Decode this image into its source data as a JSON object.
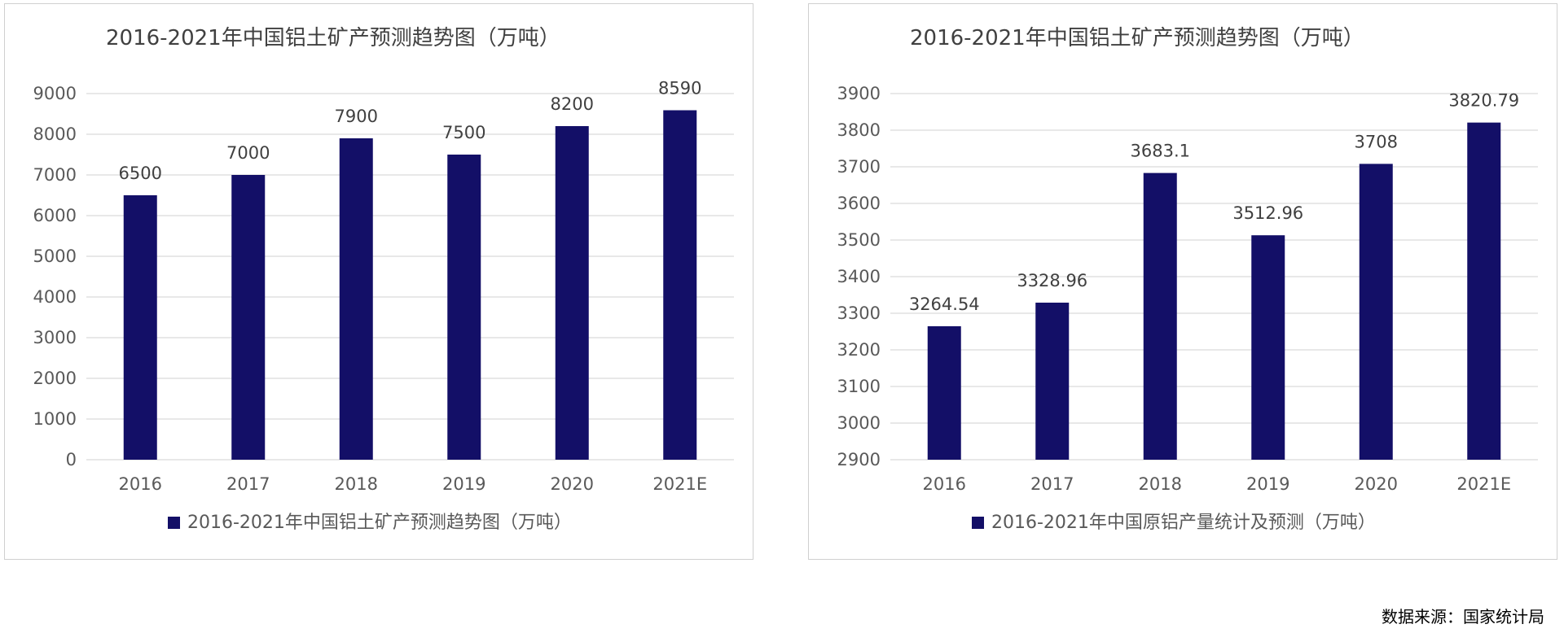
{
  "source_note": "数据来源：国家统计局",
  "colors": {
    "bar": "#130f67",
    "grid": "#d9d9d9"
  },
  "chart_data": [
    {
      "type": "bar",
      "title": "2016-2021年中国铝土矿产预测趋势图（万吨）",
      "categories": [
        "2016",
        "2017",
        "2018",
        "2019",
        "2020",
        "2021E"
      ],
      "series": [
        {
          "name": "2016-2021年中国铝土矿产预测趋势图（万吨）",
          "values": [
            6500,
            7000,
            7900,
            7500,
            8200,
            8590
          ]
        }
      ],
      "data_labels": [
        "6500",
        "7000",
        "7900",
        "7500",
        "8200",
        "8590"
      ],
      "ylim": [
        0,
        9000
      ],
      "yticks": [
        0,
        1000,
        2000,
        3000,
        4000,
        5000,
        6000,
        7000,
        8000,
        9000
      ],
      "ytick_labels": [
        "0",
        "1000",
        "2000",
        "3000",
        "4000",
        "5000",
        "6000",
        "7000",
        "8000",
        "9000"
      ],
      "grid": true,
      "legend_position": "bottom"
    },
    {
      "type": "bar",
      "title": "2016-2021年中国铝土矿产预测趋势图（万吨）",
      "categories": [
        "2016",
        "2017",
        "2018",
        "2019",
        "2020",
        "2021E"
      ],
      "series": [
        {
          "name": "2016-2021年中国原铝产量统计及预测（万吨）",
          "values": [
            3264.54,
            3328.96,
            3683.1,
            3512.96,
            3708,
            3820.79
          ]
        }
      ],
      "data_labels": [
        "3264.54",
        "3328.96",
        "3683.1",
        "3512.96",
        "3708",
        "3820.79"
      ],
      "ylim": [
        2900,
        3900
      ],
      "yticks": [
        2900,
        3000,
        3100,
        3200,
        3300,
        3400,
        3500,
        3600,
        3700,
        3800,
        3900
      ],
      "ytick_labels": [
        "2900",
        "3000",
        "3100",
        "3200",
        "3300",
        "3400",
        "3500",
        "3600",
        "3700",
        "3800",
        "3900"
      ],
      "grid": true,
      "legend_position": "bottom"
    }
  ]
}
